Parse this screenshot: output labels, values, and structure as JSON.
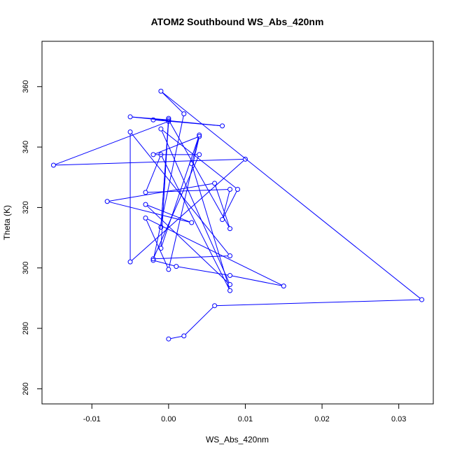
{
  "chart_data": {
    "type": "scatter",
    "title": "ATOM2 Southbound WS_Abs_420nm",
    "xlabel": "WS_Abs_420nm",
    "ylabel": "Theta (K)",
    "xlim": [
      -0.0165,
      0.0345
    ],
    "ylim": [
      255,
      375
    ],
    "x_ticks": [
      -0.01,
      0.0,
      0.01,
      0.02,
      0.03
    ],
    "x_tick_labels": [
      "-0.01",
      "0.00",
      "0.01",
      "0.02",
      "0.03"
    ],
    "y_ticks": [
      260,
      280,
      300,
      320,
      340,
      360
    ],
    "y_tick_labels": [
      "260",
      "280",
      "300",
      "320",
      "340",
      "360"
    ],
    "grid": false,
    "legend": "none",
    "series_color": "#0000ff",
    "marker": "open-circle",
    "connected": true,
    "points": [
      {
        "x": 0.0,
        "y": 276.5
      },
      {
        "x": 0.002,
        "y": 277.5
      },
      {
        "x": 0.006,
        "y": 287.5
      },
      {
        "x": 0.033,
        "y": 289.5
      },
      {
        "x": -0.001,
        "y": 358.5
      },
      {
        "x": 0.002,
        "y": 351.0
      },
      {
        "x": -0.002,
        "y": 302.5
      },
      {
        "x": 0.001,
        "y": 300.5
      },
      {
        "x": 0.008,
        "y": 297.5
      },
      {
        "x": 0.015,
        "y": 294.0
      },
      {
        "x": -0.003,
        "y": 316.5
      },
      {
        "x": 0.0,
        "y": 299.5
      },
      {
        "x": 0.004,
        "y": 343.5
      },
      {
        "x": -0.002,
        "y": 337.5
      },
      {
        "x": 0.004,
        "y": 337.5
      },
      {
        "x": -0.002,
        "y": 303.0
      },
      {
        "x": 0.008,
        "y": 304.0
      },
      {
        "x": -0.005,
        "y": 345.0
      },
      {
        "x": -0.005,
        "y": 302.0
      },
      {
        "x": 0.01,
        "y": 336.0
      },
      {
        "x": -0.015,
        "y": 334.0
      },
      {
        "x": 0.0,
        "y": 348.5
      },
      {
        "x": -0.001,
        "y": 313.5
      },
      {
        "x": 0.0,
        "y": 349.5
      },
      {
        "x": -0.001,
        "y": 306.5
      },
      {
        "x": 0.004,
        "y": 344.0
      },
      {
        "x": 0.003,
        "y": 334.5
      },
      {
        "x": 0.008,
        "y": 292.5
      },
      {
        "x": -0.001,
        "y": 337.5
      },
      {
        "x": -0.003,
        "y": 325.0
      },
      {
        "x": 0.008,
        "y": 326.0
      },
      {
        "x": 0.007,
        "y": 316.0
      },
      {
        "x": 0.009,
        "y": 326.0
      },
      {
        "x": -0.001,
        "y": 346.0
      },
      {
        "x": 0.008,
        "y": 294.5
      },
      {
        "x": -0.003,
        "y": 321.0
      },
      {
        "x": 0.003,
        "y": 315.0
      },
      {
        "x": -0.008,
        "y": 322.0
      },
      {
        "x": 0.006,
        "y": 328.0
      },
      {
        "x": 0.008,
        "y": 313.0
      },
      {
        "x": 0.0,
        "y": 349.0
      },
      {
        "x": -0.005,
        "y": 350.0
      },
      {
        "x": 0.007,
        "y": 347.0
      },
      {
        "x": -0.002,
        "y": 349.0
      }
    ]
  }
}
